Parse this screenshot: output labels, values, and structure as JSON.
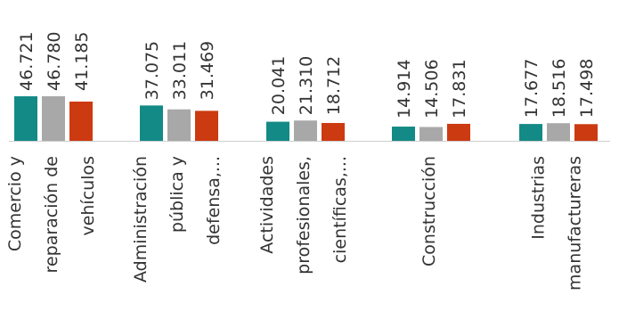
{
  "chart_data": {
    "type": "bar",
    "categories": [
      [
        "Comercio y",
        "reparación de",
        "vehículos"
      ],
      [
        "Administración",
        "pública y",
        "defensa,..."
      ],
      [
        "Actividades",
        "profesionales,",
        "científicas,..."
      ],
      [
        "Construcción"
      ],
      [
        "Industrias",
        "manufactureras"
      ]
    ],
    "series": [
      {
        "values": [
          46.721,
          37.075,
          20.041,
          14.914,
          17.677
        ]
      },
      {
        "values": [
          46.78,
          33.011,
          21.31,
          14.506,
          18.516
        ]
      },
      {
        "values": [
          41.185,
          31.469,
          18.712,
          17.831,
          17.498
        ]
      }
    ],
    "value_labels": [
      [
        "46.721",
        "46.780",
        "41.185"
      ],
      [
        "37.075",
        "33.011",
        "31.469"
      ],
      [
        "20.041",
        "21.310",
        "18.712"
      ],
      [
        "14.914",
        "14.506",
        "17.831"
      ],
      [
        "17.677",
        "18.516",
        "17.498"
      ]
    ],
    "colors": [
      "#138a86",
      "#a8a8a8",
      "#cc3a12"
    ],
    "grid": false,
    "legend": "none"
  }
}
